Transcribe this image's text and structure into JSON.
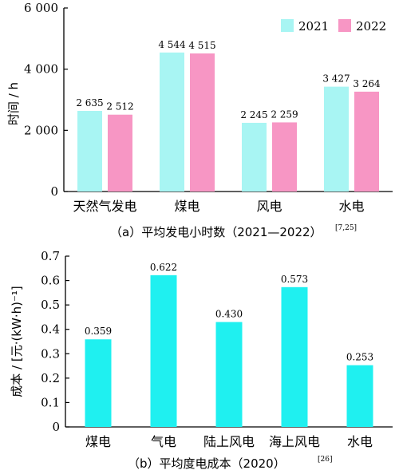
{
  "chart_data": [
    {
      "type": "bar",
      "title": "",
      "caption": "（a）平均发电小时数（2021—2022）",
      "caption_ref": "[7,25]",
      "ylabel": "时间 / h",
      "xlabel": "",
      "ylim": [
        0,
        6000
      ],
      "yticks": [
        0,
        2000,
        4000,
        6000
      ],
      "ytick_labels": [
        "0",
        "2 000",
        "4 000",
        "6 000"
      ],
      "grid": false,
      "legend_position": "top-right",
      "categories": [
        "天然气发电",
        "煤电",
        "风电",
        "水电"
      ],
      "series": [
        {
          "name": "2021",
          "color": "#a8f5f3",
          "values": [
            2635,
            4544,
            2245,
            3427
          ],
          "labels": [
            "2 635",
            "4 544",
            "2 245",
            "3 427"
          ]
        },
        {
          "name": "2022",
          "color": "#f796c4",
          "values": [
            2512,
            4515,
            2259,
            3264
          ],
          "labels": [
            "2 512",
            "4 515",
            "2 259",
            "3 264"
          ]
        }
      ]
    },
    {
      "type": "bar",
      "title": "",
      "caption": "（b）平均度电成本（2020）",
      "caption_ref": "[26]",
      "ylabel": "成本 / [元·(kW·h)⁻¹]",
      "xlabel": "",
      "ylim": [
        0,
        0.7
      ],
      "yticks": [
        0,
        0.1,
        0.2,
        0.3,
        0.4,
        0.5,
        0.6,
        0.7
      ],
      "ytick_labels": [
        "0",
        "0.1",
        "0.2",
        "0.3",
        "0.4",
        "0.5",
        "0.6",
        "0.7"
      ],
      "grid": false,
      "categories": [
        "煤电",
        "气电",
        "陆上风电",
        "海上风电",
        "水电"
      ],
      "series": [
        {
          "color": "#1ff0f0",
          "values": [
            0.359,
            0.622,
            0.43,
            0.573,
            0.253
          ],
          "labels": [
            "0.359",
            "0.622",
            "0.430",
            "0.573",
            "0.253"
          ]
        }
      ]
    }
  ]
}
